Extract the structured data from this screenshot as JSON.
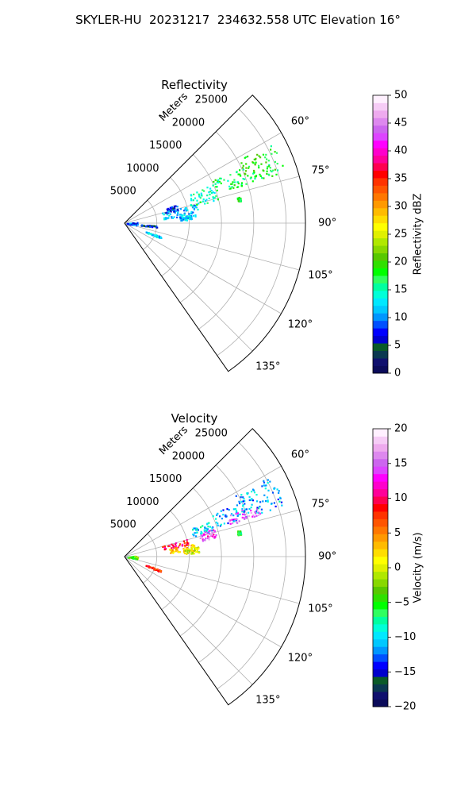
{
  "figure": {
    "suptitle": "SKYLER-HU  20231217  234632.558 UTC Elevation 16°"
  },
  "chart_data": [
    {
      "type": "heatmap",
      "title": "Reflectivity",
      "projection": "polar sector",
      "r_label": "Meters",
      "r_lim": [
        0,
        28000
      ],
      "r_ticks": [
        5000,
        10000,
        15000,
        20000,
        25000
      ],
      "r_tick_labels": [
        "5000",
        "10000",
        "15000",
        "20000",
        "25000"
      ],
      "theta_lim_deg": [
        45,
        145
      ],
      "theta_ticks_deg": [
        60,
        75,
        90,
        105,
        120,
        135
      ],
      "theta_tick_labels": [
        "60°",
        "75°",
        "90°",
        "105°",
        "120°",
        "135°"
      ],
      "grid": true,
      "colorbar": {
        "label": "Reflectivity dBZ",
        "range": [
          0,
          50
        ],
        "ticks": [
          0,
          5,
          10,
          15,
          20,
          25,
          30,
          35,
          40,
          45,
          50
        ],
        "tick_labels": [
          "0",
          "5",
          "10",
          "15",
          "20",
          "25",
          "30",
          "35",
          "40",
          "45",
          "50"
        ],
        "palette": [
          "#0b0b5a",
          "#10106e",
          "#0a3850",
          "#0a5a28",
          "#0000cc",
          "#0000ff",
          "#0050ff",
          "#0096ff",
          "#00c8ff",
          "#00e8ff",
          "#00ffd8",
          "#00ffa0",
          "#30ff60",
          "#00ff00",
          "#30e000",
          "#58c800",
          "#88d800",
          "#b0e800",
          "#e0f000",
          "#ffff00",
          "#ffdd00",
          "#ffbb00",
          "#ff9900",
          "#ff7700",
          "#ff5500",
          "#ff3300",
          "#ff0000",
          "#ff0050",
          "#ff0099",
          "#ff00cc",
          "#ff00ff",
          "#dd44ff",
          "#cc66ee",
          "#dd88ee",
          "#eeaaee",
          "#f6ccf6",
          "#fff0ff"
        ]
      },
      "echo_cells": [
        {
          "az_deg": [
            61,
            72
          ],
          "r_m": [
            19500,
            26000
          ],
          "value": 18
        },
        {
          "az_deg": [
            64,
            72
          ],
          "r_m": [
            15000,
            20000
          ],
          "value": 17
        },
        {
          "az_deg": [
            66,
            76
          ],
          "r_m": [
            10500,
            15000
          ],
          "value": 15
        },
        {
          "az_deg": [
            74,
            84
          ],
          "r_m": [
            6000,
            11500
          ],
          "value": 11
        },
        {
          "az_deg": [
            83,
            87
          ],
          "r_m": [
            8500,
            10500
          ],
          "value": 12
        },
        {
          "az_deg": [
            70,
            76
          ],
          "r_m": [
            6500,
            8500
          ],
          "value": 8
        },
        {
          "az_deg": [
            84,
            100
          ],
          "r_m": [
            300,
            2000
          ],
          "value": 9
        },
        {
          "az_deg": [
            77,
            79
          ],
          "r_m": [
            17800,
            18300
          ],
          "value": 18
        },
        {
          "az_deg": [
            94,
            97
          ],
          "r_m": [
            2500,
            5000
          ],
          "value": 7
        },
        {
          "az_deg": [
            110,
            113
          ],
          "r_m": [
            3500,
            6000
          ],
          "value": 12
        }
      ]
    },
    {
      "type": "heatmap",
      "title": "Velocity",
      "projection": "polar sector",
      "r_label": "Meters",
      "r_lim": [
        0,
        28000
      ],
      "r_ticks": [
        5000,
        10000,
        15000,
        20000,
        25000
      ],
      "r_tick_labels": [
        "5000",
        "10000",
        "15000",
        "20000",
        "25000"
      ],
      "theta_lim_deg": [
        45,
        145
      ],
      "theta_ticks_deg": [
        60,
        75,
        90,
        105,
        120,
        135
      ],
      "theta_tick_labels": [
        "60°",
        "75°",
        "90°",
        "105°",
        "120°",
        "135°"
      ],
      "grid": true,
      "colorbar": {
        "label": "Velocity (m/s)",
        "range": [
          -20,
          20
        ],
        "ticks": [
          -20,
          -15,
          -10,
          -5,
          0,
          5,
          10,
          15,
          20
        ],
        "tick_labels": [
          "−20",
          "−15",
          "−10",
          "−5",
          "0",
          "5",
          "10",
          "15",
          "20"
        ],
        "palette": [
          "#0b0b5a",
          "#10106e",
          "#0a3850",
          "#0a5a28",
          "#0000cc",
          "#0000ff",
          "#0050ff",
          "#0096ff",
          "#00c8ff",
          "#00e8ff",
          "#00ffd8",
          "#00ffa0",
          "#30ff60",
          "#00ff00",
          "#30e000",
          "#58c800",
          "#88d800",
          "#b0e800",
          "#e0f000",
          "#ffff00",
          "#ffdd00",
          "#ffbb00",
          "#ff9900",
          "#ff7700",
          "#ff5500",
          "#ff3300",
          "#ff0000",
          "#ff0050",
          "#ff0099",
          "#ff00cc",
          "#ff00ff",
          "#dd44ff",
          "#cc66ee",
          "#dd88ee",
          "#eeaaee",
          "#f6ccf6",
          "#fff0ff"
        ]
      },
      "echo_cells": [
        {
          "az_deg": [
            61,
            72
          ],
          "r_m": [
            19500,
            26000
          ],
          "value": -11
        },
        {
          "az_deg": [
            64,
            72
          ],
          "r_m": [
            15000,
            20000
          ],
          "value": -11
        },
        {
          "az_deg": [
            68,
            73
          ],
          "r_m": [
            17000,
            22000
          ],
          "value": 15
        },
        {
          "az_deg": [
            67,
            74
          ],
          "r_m": [
            11000,
            14500
          ],
          "value": -10
        },
        {
          "az_deg": [
            74,
            80
          ],
          "r_m": [
            6000,
            10000
          ],
          "value": 9
        },
        {
          "az_deg": [
            79,
            85
          ],
          "r_m": [
            7000,
            11000
          ],
          "value": 3
        },
        {
          "az_deg": [
            82,
            87
          ],
          "r_m": [
            9000,
            11500
          ],
          "value": 0
        },
        {
          "az_deg": [
            72,
            78
          ],
          "r_m": [
            12000,
            14500
          ],
          "value": 14
        },
        {
          "az_deg": [
            84,
            100
          ],
          "r_m": [
            300,
            2000
          ],
          "value": -4
        },
        {
          "az_deg": [
            77,
            79
          ],
          "r_m": [
            17800,
            18300
          ],
          "value": -5
        },
        {
          "az_deg": [
            110,
            113
          ],
          "r_m": [
            3500,
            6000
          ],
          "value": 8
        }
      ]
    }
  ]
}
